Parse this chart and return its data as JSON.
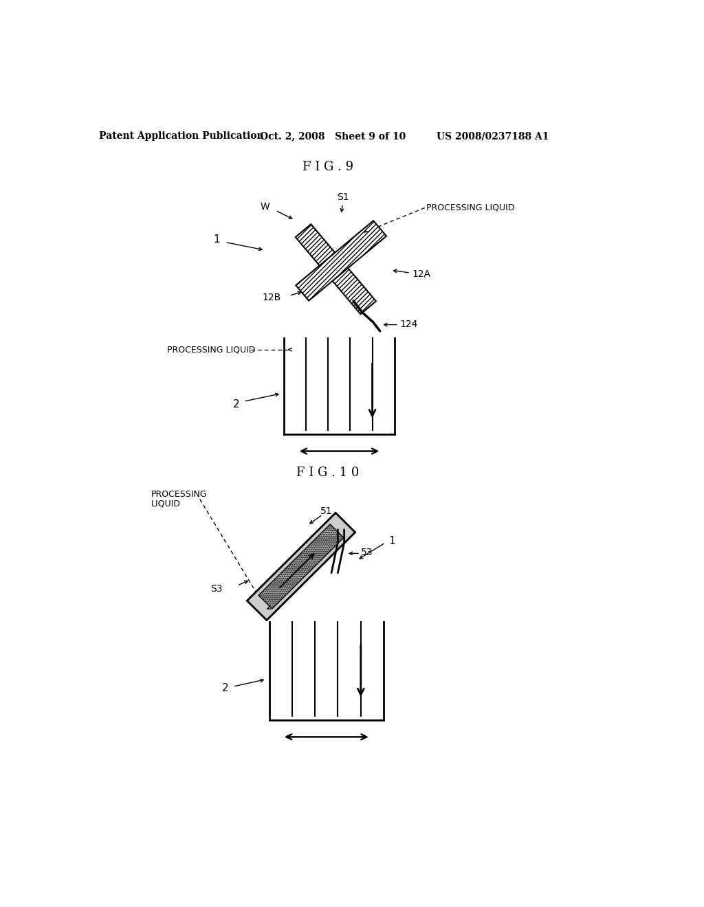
{
  "fig9_title": "F I G . 9",
  "fig10_title": "F I G . 1 0",
  "header_left": "Patent Application Publication",
  "header_mid": "Oct. 2, 2008   Sheet 9 of 10",
  "header_right": "US 2008/0237188 A1",
  "background_color": "#ffffff",
  "line_color": "#000000"
}
